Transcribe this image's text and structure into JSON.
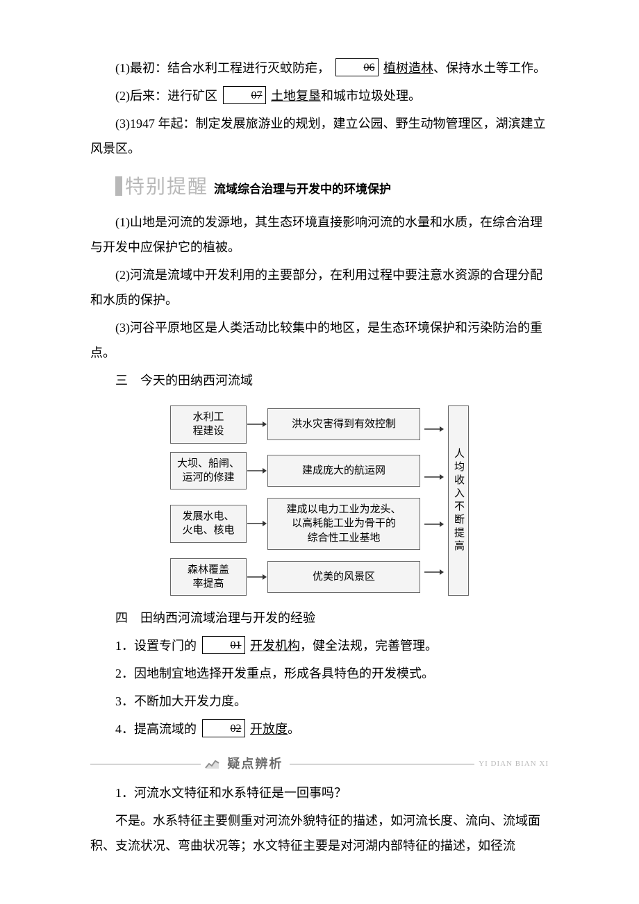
{
  "p1_a": "(1)最初：结合水利工程进行灭蚊防疟，",
  "p1_badge": "06",
  "p1_b": "植树造林",
  "p1_c": "、保持水土等工作。",
  "p2_a": "(2)后来：进行矿区",
  "p2_badge": "07",
  "p2_b": "土地复垦",
  "p2_c": "和城市垃圾处理。",
  "p3": "(3)1947 年起：制定发展旅游业的规划，建立公园、野生动物管理区，湖滨建立风景区。",
  "special_title": "特别提醒",
  "special_sub": "流域综合治理与开发中的环境保护",
  "sp1": "(1)山地是河流的发源地，其生态环境直接影响河流的水量和水质，在综合治理与开发中应保护它的植被。",
  "sp2": "(2)河流是流域中开发利用的主要部分，在利用过程中要注意水资源的合理分配和水质的保护。",
  "sp3": "(3)河谷平原地区是人类活动比较集中的地区，是生态环境保护和污染防治的重点。",
  "h3": "三　今天的田纳西河流域",
  "flow": {
    "rows": [
      {
        "left": "水利工\n程建设",
        "mid": "洪水灾害得到有效控制"
      },
      {
        "left": "大坝、船闸、\n运河的修建",
        "mid": "建成庞大的航运网"
      },
      {
        "left": "发展水电、\n火电、核电",
        "mid": "建成以电力工业为龙头、\n以高耗能工业为骨干的\n综合性工业基地"
      },
      {
        "left": "森林覆盖\n率提高",
        "mid": "优美的风景区"
      }
    ],
    "result": "人均收入不断提高",
    "box_bg": "#f4f4f4",
    "box_border": "#666666",
    "arrow_color": "#333333"
  },
  "h4": "四　田纳西河流域治理与开发的经验",
  "e1_a": "1．设置专门的",
  "e1_badge": "01",
  "e1_b": "开发机构",
  "e1_c": "，健全法规，完善管理。",
  "e2": "2．因地制宜地选择开发重点，形成各具特色的开发模式。",
  "e3": "3．不断加大开发力度。",
  "e4_a": "4．提高流域的",
  "e4_badge": "02",
  "e4_b": "开放度",
  "e4_c": "。",
  "div_title": "疑点辨析",
  "div_pinyin": "YI DIAN BIAN XI",
  "q1": "1．河流水文特征和水系特征是一回事吗？",
  "a1": "不是。水系特征主要侧重对河流外貌特征的描述，如河流长度、流向、流域面积、支流状况、弯曲状况等；水文特征主要是对河湖内部特征的描述，如径流"
}
